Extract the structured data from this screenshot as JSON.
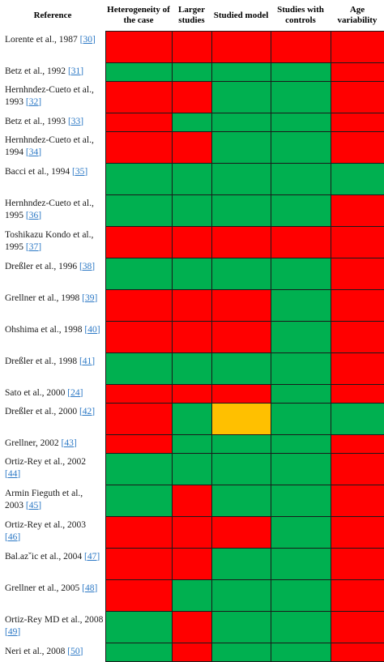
{
  "headers": {
    "reference": "Reference",
    "heterogeneity": "Heterogeneity of the case",
    "larger": "Larger studies",
    "studied": "Studied model",
    "controls": "Studies with controls",
    "age": "Age variability"
  },
  "colors": {
    "red": "#ff0000",
    "green": "#00b050",
    "yellow": "#ffc000"
  },
  "rows": [
    {
      "text": "Lorente et al., 1987",
      "cite": "[30]",
      "h": 39,
      "cells": [
        "red",
        "red",
        "red",
        "red",
        "red"
      ]
    },
    {
      "text": "Betz et al., 1992",
      "cite": "[31]",
      "h": 23,
      "cells": [
        "green",
        "green",
        "green",
        "green",
        "red"
      ]
    },
    {
      "text": "Hernhndez-Cueto et al., 1993",
      "cite": "[32]",
      "h": 39,
      "cells": [
        "red",
        "red",
        "green",
        "green",
        "red"
      ]
    },
    {
      "text": "Betz et al., 1993",
      "cite": "[33]",
      "h": 23,
      "cells": [
        "red",
        "green",
        "green",
        "green",
        "red"
      ]
    },
    {
      "text": "Hernhndez-Cueto et al., 1994",
      "cite": "[34]",
      "h": 39,
      "cells": [
        "red",
        "red",
        "green",
        "green",
        "red"
      ]
    },
    {
      "text": "Bacci et al., 1994",
      "cite": "[35]",
      "h": 39,
      "cells": [
        "green",
        "green",
        "green",
        "green",
        "green"
      ]
    },
    {
      "text": "Hernhndez-Cueto et al., 1995",
      "cite": "[36]",
      "h": 39,
      "cells": [
        "green",
        "green",
        "green",
        "green",
        "red"
      ]
    },
    {
      "text": "Toshikazu Kondo et al., 1995",
      "cite": "[37]",
      "h": 39,
      "cells": [
        "red",
        "red",
        "red",
        "red",
        "red"
      ]
    },
    {
      "text": "Dreßler et al., 1996",
      "cite": "[38]",
      "h": 39,
      "cells": [
        "green",
        "green",
        "green",
        "green",
        "red"
      ]
    },
    {
      "text": "Grellner et al., 1998",
      "cite": "[39]",
      "h": 39,
      "cells": [
        "red",
        "red",
        "red",
        "green",
        "red"
      ]
    },
    {
      "text": "Ohshima et al., 1998",
      "cite": "[40]",
      "h": 39,
      "cells": [
        "red",
        "red",
        "red",
        "green",
        "red"
      ]
    },
    {
      "text": "Dreßler et al., 1998",
      "cite": "[41]",
      "h": 39,
      "cells": [
        "green",
        "green",
        "green",
        "green",
        "red"
      ]
    },
    {
      "text": "Sato et al., 2000",
      "cite": "[24]",
      "h": 23,
      "cells": [
        "red",
        "red",
        "red",
        "green",
        "red"
      ]
    },
    {
      "text": "Dreßler et al., 2000",
      "cite": "[42]",
      "h": 39,
      "cells": [
        "red",
        "green",
        "yellow",
        "green",
        "green"
      ]
    },
    {
      "text": "Grellner, 2002",
      "cite": "[43]",
      "h": 23,
      "cells": [
        "red",
        "green",
        "green",
        "green",
        "red"
      ]
    },
    {
      "text": "Ortiz-Rey et al., 2002",
      "cite": "[44]",
      "h": 39,
      "cells": [
        "green",
        "green",
        "green",
        "green",
        "red"
      ]
    },
    {
      "text": "Armin Fieguth et al., 2003",
      "cite": "[45]",
      "h": 39,
      "cells": [
        "green",
        "red",
        "green",
        "green",
        "red"
      ]
    },
    {
      "text": "Ortiz-Rey et al., 2003",
      "cite": "[46]",
      "h": 39,
      "cells": [
        "red",
        "red",
        "red",
        "green",
        "red"
      ]
    },
    {
      "text": "Bal.azˇic et al., 2004",
      "cite": "[47]",
      "h": 39,
      "cells": [
        "red",
        "red",
        "green",
        "green",
        "red"
      ]
    },
    {
      "text": "Grellner et al., 2005",
      "cite": "[48]",
      "h": 39,
      "cells": [
        "red",
        "green",
        "green",
        "green",
        "red"
      ]
    },
    {
      "text": "Ortiz-Rey MD et al., 2008",
      "cite": "[49]",
      "h": 39,
      "cells": [
        "green",
        "red",
        "green",
        "green",
        "red"
      ]
    },
    {
      "text": "Neri et al., 2008",
      "cite": "[50]",
      "h": 23,
      "cells": [
        "green",
        "red",
        "green",
        "green",
        "red"
      ]
    }
  ]
}
